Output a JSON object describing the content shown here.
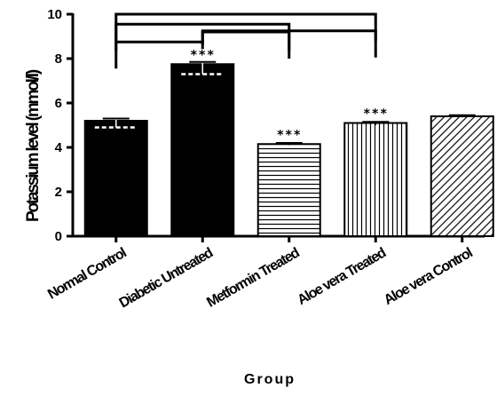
{
  "chart_data": {
    "type": "bar",
    "categories": [
      "Normal Control",
      "Diabetic Untreated",
      "Metformin Treated",
      "Aloe vera Treated",
      "Aloe vera Control"
    ],
    "values": [
      5.2,
      7.75,
      4.15,
      5.1,
      5.4
    ],
    "error_plus": [
      0.1,
      0.1,
      0.05,
      0.05,
      0.05
    ],
    "error_minus": [
      0.3,
      0.45,
      0.05,
      0.1,
      0.05
    ],
    "fill_patterns": [
      "solid",
      "solid",
      "horizontal-lines",
      "vertical-lines",
      "diagonal-lines"
    ],
    "significance": [
      "",
      "***",
      "***",
      "***",
      ""
    ],
    "ylabel": "Potassium level (mmol/l)",
    "xlabel": "Group",
    "ylim": [
      0,
      10
    ],
    "yticks": [
      0,
      2,
      4,
      6,
      8,
      10
    ],
    "comparison_brackets": [
      {
        "from": 0,
        "to": 1,
        "level": 8.75
      },
      {
        "from": 1,
        "to": 2,
        "level": 9.2
      },
      {
        "from": 0,
        "to": 2,
        "level": 9.55
      },
      {
        "from": 1,
        "to": 3,
        "level": 9.25
      },
      {
        "from": 0,
        "to": 3,
        "level": 10.0
      }
    ]
  }
}
